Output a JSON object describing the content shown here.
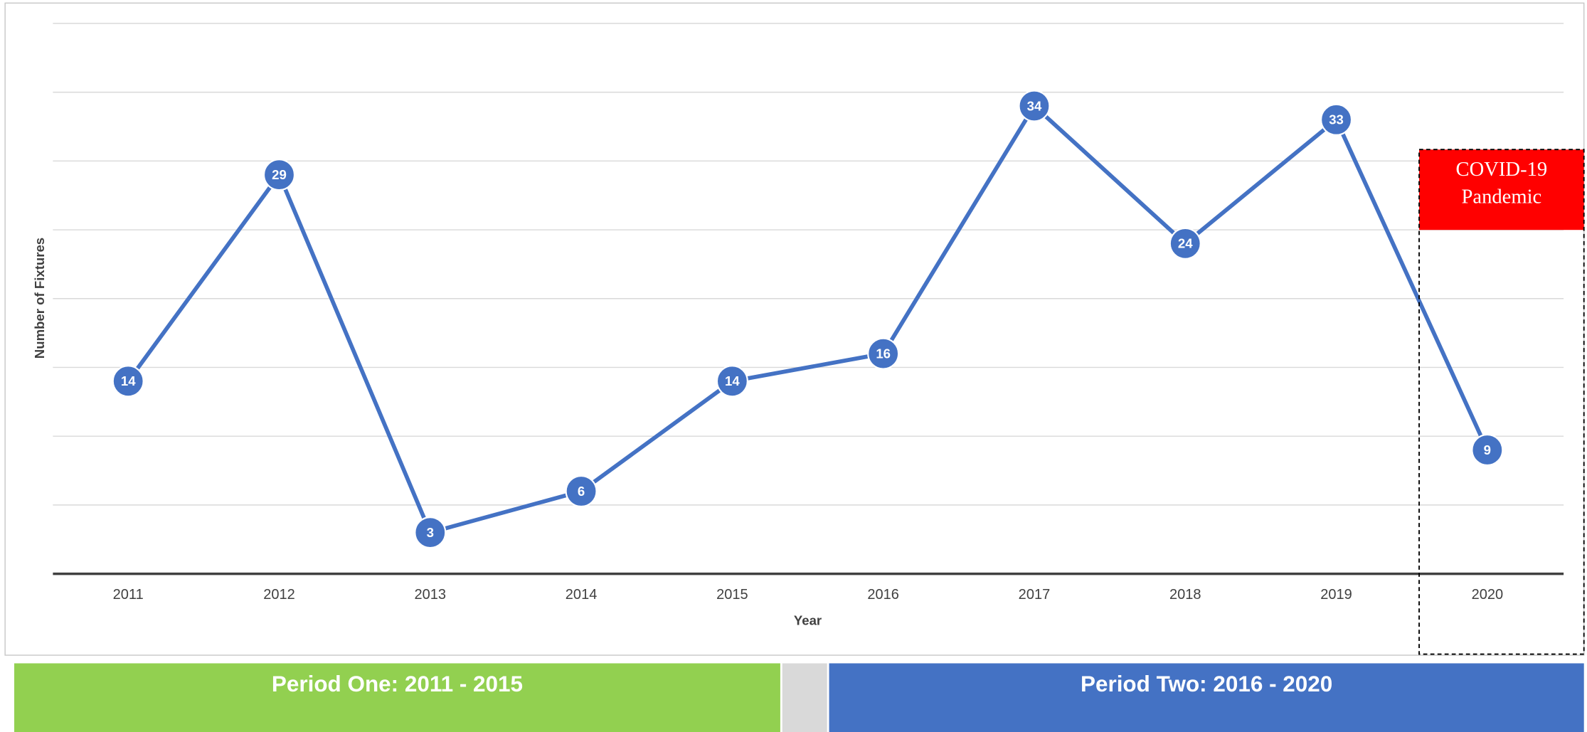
{
  "chart_data": {
    "type": "line",
    "x_label": "Year",
    "y_label": "Number of Fixtures",
    "categories": [
      "2011",
      "2012",
      "2013",
      "2014",
      "2015",
      "2016",
      "2017",
      "2018",
      "2019",
      "2020"
    ],
    "values": [
      14,
      29,
      3,
      6,
      14,
      16,
      34,
      24,
      33,
      9
    ],
    "color": "#4472c4",
    "ylim": [
      0,
      40
    ],
    "yticks": [
      0,
      5,
      10,
      15,
      20,
      25,
      30,
      35,
      40
    ],
    "grid": true,
    "annotation": [
      "COVID-19",
      "Pandemic"
    ],
    "periods": [
      {
        "label": "Period One: 2011 - 2015",
        "color": "#92d050"
      },
      {
        "label": "Period Two: 2016 - 2020",
        "color": "#4472c4"
      }
    ]
  }
}
